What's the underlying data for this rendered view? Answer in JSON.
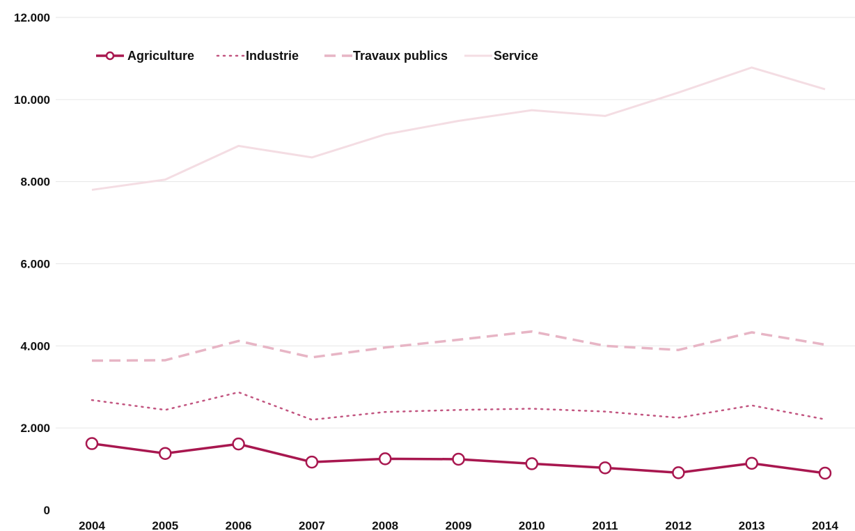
{
  "chart_data": {
    "type": "line",
    "title": "",
    "xlabel": "",
    "ylabel": "",
    "x": [
      "2004",
      "2005",
      "2006",
      "2007",
      "2008",
      "2009",
      "2010",
      "2011",
      "2012",
      "2013",
      "2014"
    ],
    "ylim": [
      0,
      12000
    ],
    "y_ticks": [
      0,
      2000,
      4000,
      6000,
      8000,
      10000,
      12000
    ],
    "y_tick_labels": [
      "0",
      "2.000",
      "4.000",
      "6.000",
      "8.000",
      "10.000",
      "12.000"
    ],
    "grid": true,
    "legend_position": "top-left",
    "series": [
      {
        "name": "Agriculture",
        "style": "solid-markers",
        "color": "#a8174f",
        "values": [
          1620,
          1380,
          1610,
          1170,
          1250,
          1240,
          1130,
          1030,
          910,
          1140,
          900
        ]
      },
      {
        "name": "Industrie",
        "style": "dotted",
        "color": "#c25580",
        "values": [
          2680,
          2440,
          2870,
          2200,
          2390,
          2440,
          2470,
          2400,
          2250,
          2550,
          2210
        ]
      },
      {
        "name": "Travaux publics",
        "style": "dashed",
        "color": "#e7b5c5",
        "values": [
          3640,
          3650,
          4120,
          3720,
          3960,
          4150,
          4350,
          4000,
          3900,
          4330,
          4030
        ]
      },
      {
        "name": "Service",
        "style": "solid",
        "color": "#f4dde3",
        "values": [
          7800,
          8050,
          8870,
          8590,
          9150,
          9480,
          9740,
          9600,
          10170,
          10780,
          10250
        ]
      }
    ]
  }
}
